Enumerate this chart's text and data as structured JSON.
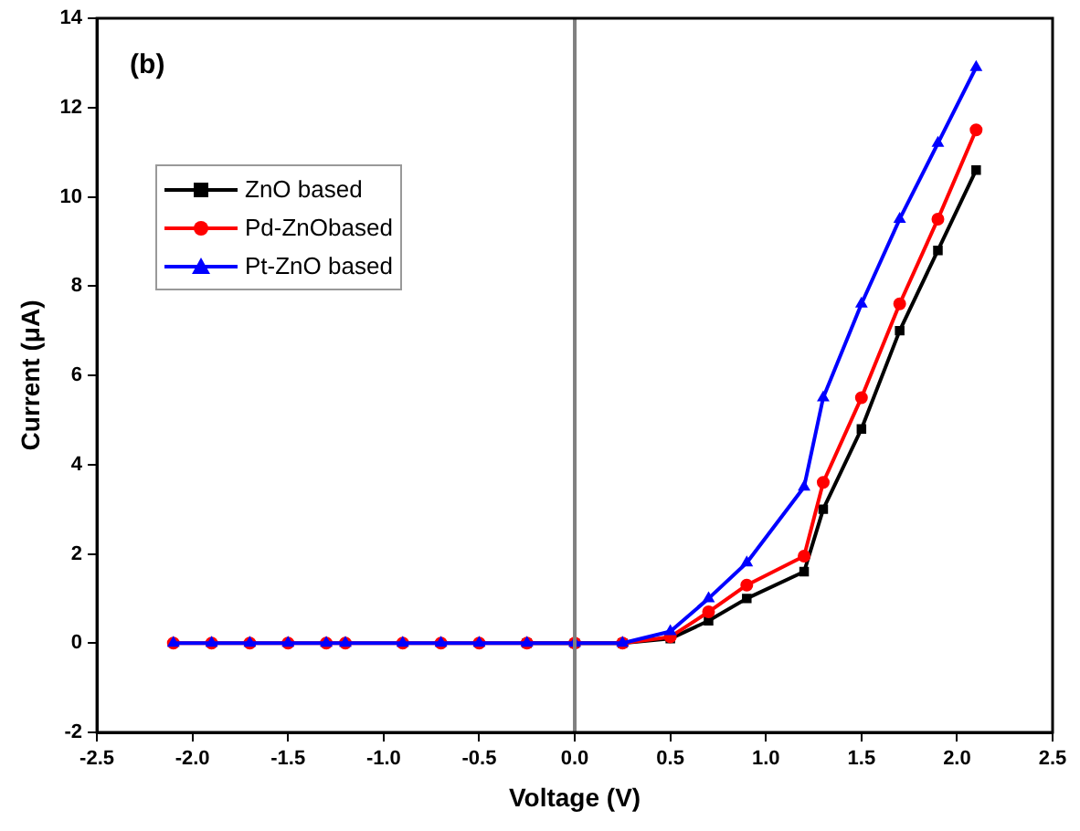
{
  "chart_data": {
    "type": "line",
    "xlabel": "Voltage (V)",
    "ylabel": "Current (μA)",
    "annotations": [
      "(b)"
    ],
    "x": [
      -2.1,
      -1.9,
      -1.7,
      -1.5,
      -1.3,
      -1.2,
      -0.9,
      -0.7,
      -0.5,
      -0.25,
      0,
      0.25,
      0.5,
      0.7,
      0.9,
      1.2,
      1.3,
      1.5,
      1.7,
      1.9,
      2.1
    ],
    "series": [
      {
        "name": "ZnO based",
        "color": "#000000",
        "marker": "square",
        "values": [
          null,
          null,
          null,
          null,
          null,
          null,
          null,
          null,
          null,
          0,
          0,
          0,
          0.1,
          0.5,
          1.0,
          1.6,
          3.0,
          4.8,
          7.0,
          8.8,
          10.6
        ]
      },
      {
        "name": "Pd-ZnObased",
        "color": "#ff0000",
        "marker": "circle",
        "values": [
          0,
          0,
          0,
          0,
          0,
          0,
          0,
          0,
          0,
          0,
          0,
          0,
          0.14,
          0.7,
          1.3,
          1.95,
          3.6,
          5.5,
          7.6,
          9.5,
          11.5
        ]
      },
      {
        "name": "Pt-ZnO based",
        "color": "#0000ff",
        "marker": "triangle",
        "values": [
          0,
          0,
          0,
          0,
          0,
          0,
          0,
          0,
          0,
          0,
          0,
          0,
          0.26,
          1.0,
          1.8,
          3.5,
          5.5,
          7.6,
          9.5,
          11.2,
          12.9
        ]
      }
    ],
    "xlim": [
      -2.5,
      2.5
    ],
    "xticks": [
      -2.5,
      {
        "value": -2,
        "label": "-2.0"
      },
      -1.5,
      {
        "value": -1,
        "label": "-1.0"
      },
      -0.5,
      {
        "value": 0,
        "label": "0.0"
      },
      0.5,
      {
        "value": 1,
        "label": "1.0"
      },
      1.5,
      {
        "value": 2,
        "label": "2.0"
      },
      2.5
    ],
    "ylim": [
      -2,
      14
    ],
    "yticks": [
      -2,
      0,
      2,
      4,
      6,
      8,
      10,
      12,
      14
    ],
    "ref_lines": [
      {
        "axis": "x",
        "value": 0,
        "color": "#808080"
      }
    ],
    "grid": false,
    "legend": "top left",
    "line_style": "solid"
  }
}
